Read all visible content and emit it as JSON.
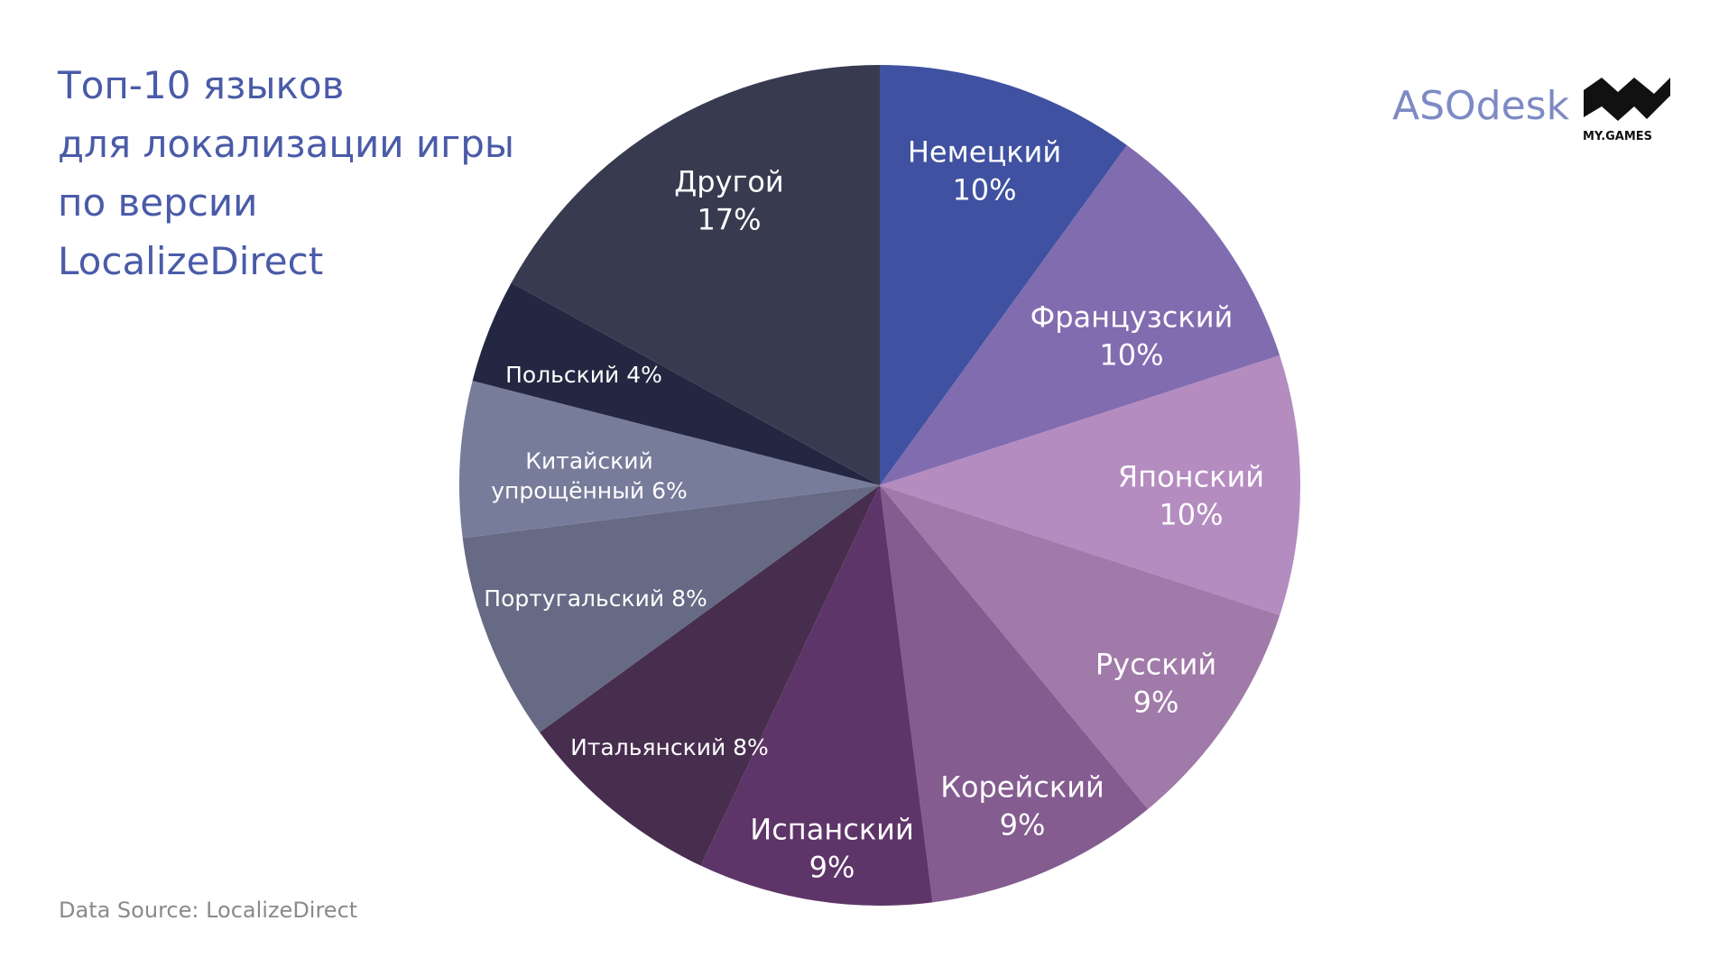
{
  "chart_data": {
    "type": "pie",
    "title": "Топ-10 языков\nдля локализации игры\nпо версии\nLocalizeDirect",
    "source": "Data Source: LocalizeDirect",
    "categories": [
      "Немецкий",
      "Французский",
      "Японский",
      "Русский",
      "Корейский",
      "Испанский",
      "Итальянский",
      "Португальский",
      "Китайский упрощённый",
      "Польский",
      "Другой"
    ],
    "values": [
      10,
      10,
      10,
      9,
      9,
      9,
      8,
      8,
      6,
      4,
      17
    ],
    "value_labels": [
      "10%",
      "10%",
      "10%",
      "9%",
      "9%",
      "9%",
      "8%",
      "8%",
      "6%",
      "4%",
      "17%"
    ],
    "colors": [
      "#3f51a0",
      "#816cb0",
      "#b48cc0",
      "#a07aa8",
      "#845c90",
      "#5e3568",
      "#472e4f",
      "#666a84",
      "#777c9a",
      "#232741",
      "#383b50"
    ]
  },
  "logos": {
    "asodesk": "ASOdesk",
    "mygames": "MY.GAMES"
  }
}
